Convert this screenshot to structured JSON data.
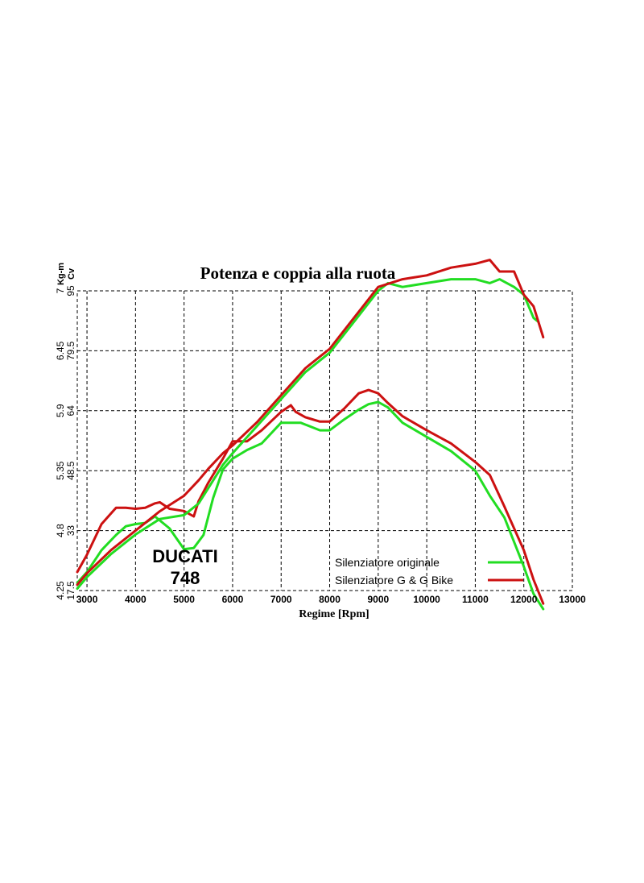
{
  "chart_data": {
    "type": "line",
    "title": "Potenza e coppia alla ruota",
    "xlabel": "Regime [Rpm]",
    "x_ticks": [
      "3000",
      "4000",
      "5000",
      "6000",
      "7000",
      "8000",
      "9000",
      "10000",
      "11000",
      "12000",
      "13000"
    ],
    "xlim": [
      2800,
      13000
    ],
    "y_units": [
      "Kg-m",
      "Cv"
    ],
    "y_torque_ticks": [
      "4.25",
      "4.8",
      "5.35",
      "5.9",
      "6.45",
      "7"
    ],
    "y_power_ticks": [
      "17.5",
      "33",
      "48.5",
      "64",
      "79.5",
      "95"
    ],
    "ylim_power": [
      17.5,
      95
    ],
    "ylim_torque": [
      4.25,
      7
    ],
    "grid": true,
    "legend_position": "bottom-right",
    "annotation": [
      "DUCATI",
      "748"
    ],
    "series": [
      {
        "name": "Silenziatore originale",
        "quantity": "torque",
        "color": "#22dd22",
        "x": [
          2800,
          3000,
          3300,
          3600,
          3800,
          4000,
          4200,
          4400,
          4700,
          5000,
          5200,
          5400,
          5600,
          5800,
          6000,
          6300,
          6600,
          7000,
          7400,
          7800,
          8000,
          8300,
          8600,
          8800,
          9000,
          9200,
          9500,
          10000,
          10500,
          11000,
          11300,
          11600,
          12000,
          12200,
          12400
        ],
        "y": [
          4.32,
          4.42,
          4.62,
          4.76,
          4.84,
          4.86,
          4.87,
          4.93,
          4.82,
          4.63,
          4.64,
          4.76,
          5.1,
          5.36,
          5.46,
          5.54,
          5.6,
          5.79,
          5.79,
          5.72,
          5.72,
          5.82,
          5.91,
          5.96,
          5.98,
          5.93,
          5.79,
          5.66,
          5.53,
          5.35,
          5.12,
          4.92,
          4.47,
          4.22,
          4.08
        ]
      },
      {
        "name": "Silenziatore G & G Bike",
        "quantity": "torque",
        "color": "#cc1111",
        "x": [
          2800,
          3000,
          3300,
          3600,
          3800,
          4000,
          4200,
          4400,
          4500,
          4700,
          5000,
          5200,
          5300,
          5500,
          5800,
          6000,
          6300,
          6600,
          7000,
          7200,
          7300,
          7500,
          7800,
          8000,
          8300,
          8600,
          8800,
          9000,
          9200,
          9500,
          10000,
          10500,
          11000,
          11300,
          11600,
          12000,
          12200,
          12400
        ],
        "y": [
          4.42,
          4.58,
          4.86,
          5.01,
          5.01,
          5.0,
          5.01,
          5.05,
          5.06,
          5.0,
          4.98,
          4.93,
          5.07,
          5.24,
          5.46,
          5.62,
          5.62,
          5.72,
          5.89,
          5.95,
          5.89,
          5.84,
          5.8,
          5.8,
          5.92,
          6.06,
          6.09,
          6.06,
          5.97,
          5.85,
          5.72,
          5.6,
          5.43,
          5.31,
          5.02,
          4.62,
          4.35,
          4.13
        ]
      },
      {
        "name": "Silenziatore originale",
        "quantity": "power",
        "color": "#22dd22",
        "x": [
          2800,
          3000,
          3500,
          4000,
          4500,
          5000,
          5300,
          5500,
          5800,
          6000,
          6500,
          7000,
          7500,
          8000,
          8500,
          9000,
          9200,
          9500,
          10000,
          10500,
          11000,
          11300,
          11500,
          11800,
          12000,
          12200,
          12300
        ],
        "y": [
          18,
          21,
          27,
          32,
          36,
          37,
          40,
          44,
          50,
          53,
          60,
          67,
          74,
          79,
          87,
          95,
          97,
          96,
          97,
          98,
          98,
          97,
          98,
          96,
          94,
          88,
          87
        ]
      },
      {
        "name": "Silenziatore G & G Bike",
        "quantity": "power",
        "color": "#cc1111",
        "x": [
          2800,
          3000,
          3500,
          4000,
          4500,
          5000,
          5300,
          5500,
          5800,
          6000,
          6500,
          7000,
          7500,
          8000,
          8500,
          9000,
          9500,
          10000,
          10500,
          11000,
          11300,
          11500,
          11800,
          12000,
          12200,
          12400
        ],
        "y": [
          19,
          22,
          28,
          33,
          38,
          42,
          46,
          49,
          53,
          55,
          61,
          68,
          75,
          80,
          88,
          96,
          98,
          99,
          101,
          102,
          103,
          100,
          100,
          94,
          91,
          83
        ]
      }
    ],
    "legend": [
      {
        "label": "Silenziatore originale",
        "color": "#22dd22"
      },
      {
        "label": "Silenziatore G & G Bike",
        "color": "#cc1111"
      }
    ]
  }
}
